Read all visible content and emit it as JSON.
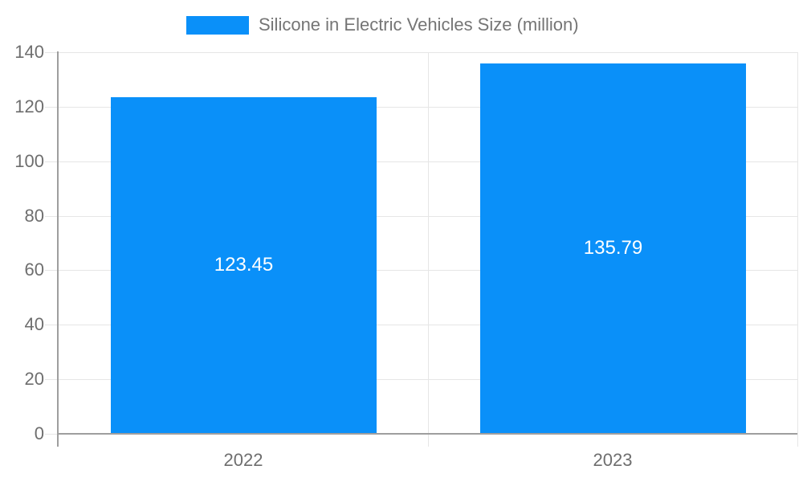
{
  "legend": {
    "label": "Silicone in Electric Vehicles Size (million)"
  },
  "chart_data": {
    "type": "bar",
    "title": "",
    "xlabel": "",
    "ylabel": "",
    "categories": [
      "2022",
      "2023"
    ],
    "series": [
      {
        "name": "Silicone in Electric Vehicles Size (million)",
        "values": [
          123.45,
          135.79
        ]
      }
    ],
    "value_labels": [
      "123.45",
      "135.79"
    ],
    "ylim": [
      0,
      140
    ],
    "yticks": [
      0,
      20,
      40,
      60,
      80,
      100,
      120,
      140
    ],
    "grid": true,
    "legend_position": "top-center",
    "colors": {
      "bar": "#0a90f9",
      "grid": "#e6e6e6",
      "axis": "#9e9e9e",
      "tick_label": "#6e6e6e",
      "legend_label": "#757575",
      "value_label": "#ffffff",
      "background": "#ffffff"
    }
  }
}
